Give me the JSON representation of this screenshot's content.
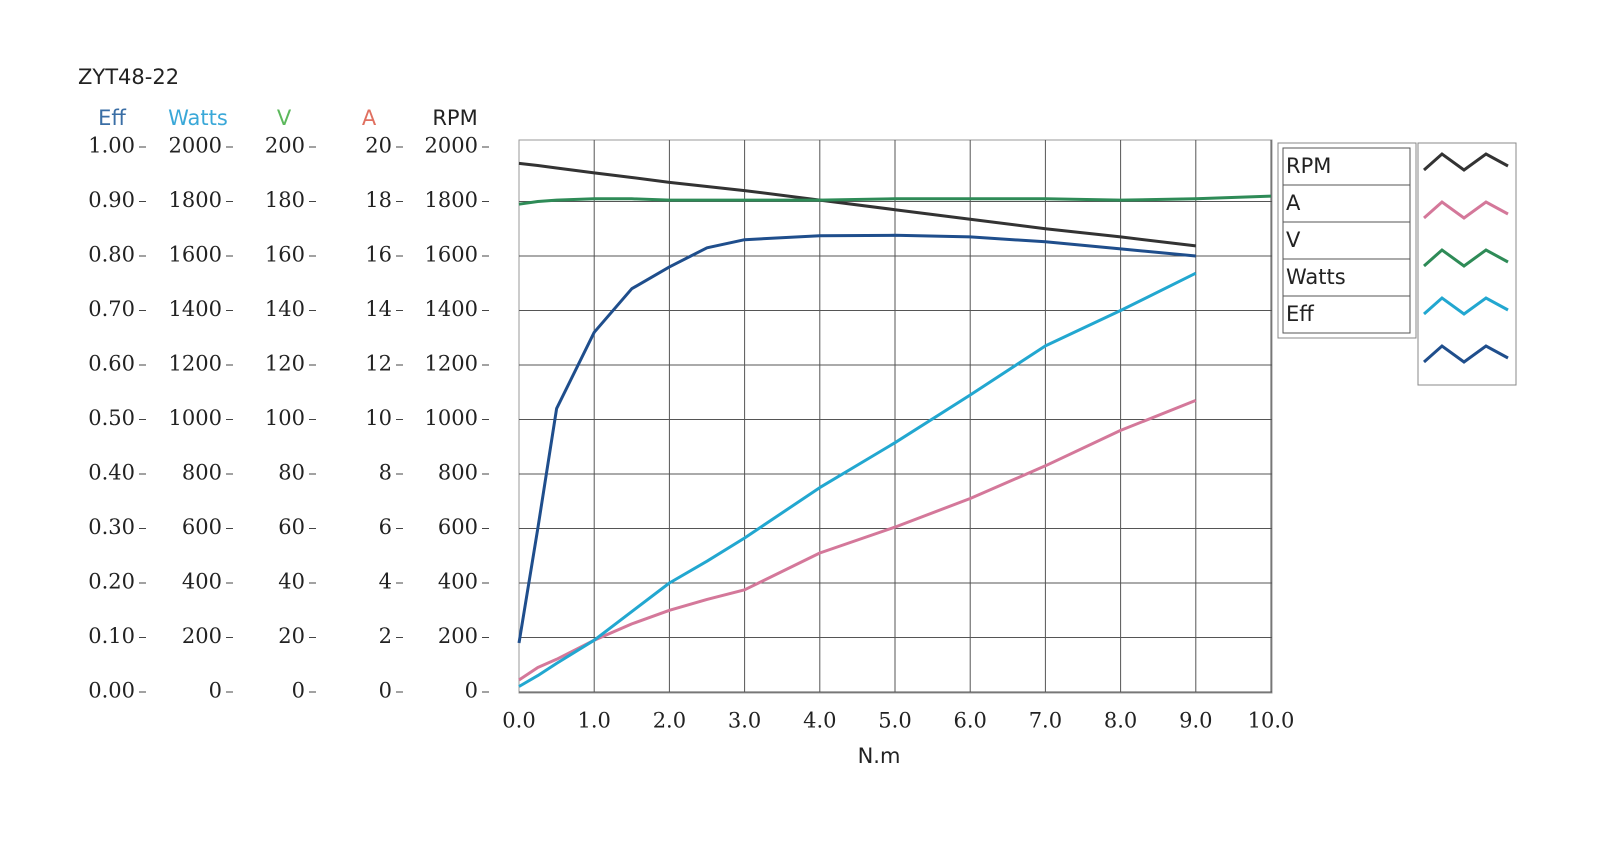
{
  "chart_data": {
    "type": "line",
    "title": "ZYT48-22",
    "x_label": "N.m",
    "x": [
      0,
      0.25,
      0.5,
      1,
      1.5,
      2,
      2.5,
      3,
      4,
      5,
      6,
      7,
      8,
      9,
      10
    ],
    "xlim": [
      0,
      10
    ],
    "xticks": [
      {
        "value": 0,
        "label": "0.0"
      },
      {
        "value": 1,
        "label": "1.0"
      },
      {
        "value": 2,
        "label": "2.0"
      },
      {
        "value": 3,
        "label": "3.0"
      },
      {
        "value": 4,
        "label": "4.0"
      },
      {
        "value": 5,
        "label": "5.0"
      },
      {
        "value": 6,
        "label": "6.0"
      },
      {
        "value": 7,
        "label": "7.0"
      },
      {
        "value": 8,
        "label": "8.0"
      },
      {
        "value": 9,
        "label": "9.0"
      },
      {
        "value": 10,
        "label": "10.0"
      }
    ],
    "grid": true,
    "axes": [
      {
        "title": "Eff",
        "color": "#3a6ea5",
        "lim": [
          0,
          1
        ],
        "ticks": [
          {
            "value": 1,
            "label": "1.00"
          },
          {
            "value": 0.9,
            "label": "0.90"
          },
          {
            "value": 0.8,
            "label": "0.80"
          },
          {
            "value": 0.7,
            "label": "0.70"
          },
          {
            "value": 0.6,
            "label": "0.60"
          },
          {
            "value": 0.5,
            "label": "0.50"
          },
          {
            "value": 0.4,
            "label": "0.40"
          },
          {
            "value": 0.3,
            "label": "0.30"
          },
          {
            "value": 0.2,
            "label": "0.20"
          },
          {
            "value": 0.1,
            "label": "0.10"
          },
          {
            "value": 0,
            "label": "0.00"
          }
        ]
      },
      {
        "title": "Watts",
        "color": "#3aa8d8",
        "lim": [
          0,
          2000
        ],
        "ticks": [
          2000,
          1800,
          1600,
          1400,
          1200,
          1000,
          800,
          600,
          400,
          200,
          0
        ]
      },
      {
        "title": "V",
        "color": "#5cb85c",
        "lim": [
          0,
          200
        ],
        "ticks": [
          200,
          180,
          160,
          140,
          120,
          100,
          80,
          60,
          40,
          20,
          0
        ]
      },
      {
        "title": "A",
        "color": "#e07060",
        "lim": [
          0,
          20
        ],
        "ticks": [
          20,
          18,
          16,
          14,
          12,
          10,
          8,
          6,
          4,
          2,
          0
        ]
      },
      {
        "title": "RPM",
        "color": "#222222",
        "lim": [
          0,
          2000
        ],
        "ticks": [
          2000,
          1800,
          1600,
          1400,
          1200,
          1000,
          800,
          600,
          400,
          200,
          0
        ]
      }
    ],
    "series": [
      {
        "name": "RPM",
        "color": "#333333",
        "axis": 4,
        "values": [
          1940,
          1932,
          1923,
          1905,
          1888,
          1870,
          1855,
          1840,
          1805,
          1770,
          1735,
          1700,
          1670,
          1637,
          null
        ]
      },
      {
        "name": "A",
        "color": "#d4789a",
        "axis": 3,
        "values": [
          0.44,
          0.9,
          1.2,
          1.9,
          2.5,
          3.0,
          3.4,
          3.75,
          5.1,
          6.05,
          7.1,
          8.3,
          9.6,
          10.7,
          null
        ]
      },
      {
        "name": "V",
        "color": "#2e8b57",
        "axis": 2,
        "values": [
          179,
          180,
          180.5,
          181,
          181,
          180.5,
          180.5,
          180.5,
          180.5,
          181,
          181,
          181,
          180.5,
          181,
          182
        ]
      },
      {
        "name": "Watts",
        "color": "#22a7d0",
        "axis": 1,
        "values": [
          20,
          60,
          105,
          190,
          295,
          400,
          480,
          565,
          750,
          915,
          1090,
          1270,
          1400,
          1537,
          null
        ]
      },
      {
        "name": "Eff",
        "color": "#1f4e8c",
        "axis": 0,
        "values": [
          0.09,
          0.3,
          0.52,
          0.66,
          0.74,
          0.78,
          0.815,
          0.83,
          0.837,
          0.838,
          0.835,
          0.826,
          0.813,
          0.8,
          null
        ]
      }
    ]
  }
}
